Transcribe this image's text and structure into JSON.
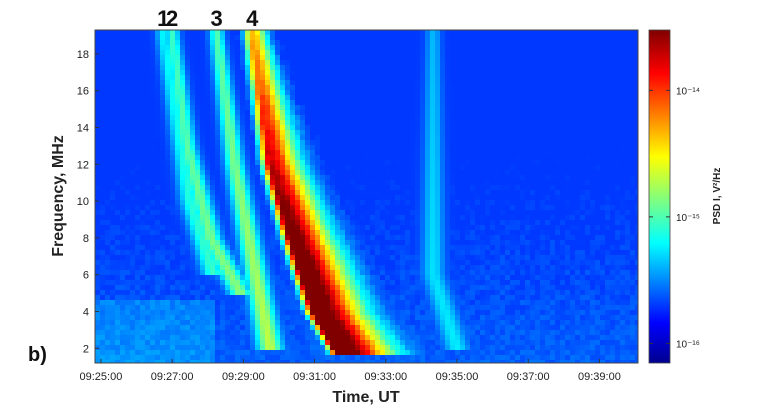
{
  "chart_data": {
    "type": "heatmap",
    "panel_label": "b)",
    "xlabel": "Time, UT",
    "ylabel": "Frequency, MHz",
    "x_ticks": [
      "09:25:00",
      "09:27:00",
      "09:29:00",
      "09:31:00",
      "09:33:00",
      "09:35:00",
      "09:37:00",
      "09:39:00"
    ],
    "x_range": [
      "09:24:50",
      "09:40:05"
    ],
    "y_ticks": [
      2,
      4,
      6,
      8,
      10,
      12,
      14,
      16,
      18
    ],
    "y_range": [
      1.2,
      19.3
    ],
    "burst_labels": [
      "1",
      "2",
      "3",
      "4"
    ],
    "bursts": [
      {
        "label": "1",
        "points": [
          [
            "09:26:45",
            19
          ],
          [
            "09:27:30",
            10
          ],
          [
            "09:28:10",
            6
          ]
        ],
        "intensity": 0.42
      },
      {
        "label": "2",
        "points": [
          [
            "09:27:00",
            19
          ],
          [
            "09:27:25",
            13
          ],
          [
            "09:28:05",
            8
          ],
          [
            "09:28:55",
            5
          ]
        ],
        "intensity": 0.55
      },
      {
        "label": "3",
        "points": [
          [
            "09:28:15",
            19
          ],
          [
            "09:28:45",
            12
          ],
          [
            "09:29:15",
            7
          ],
          [
            "09:29:45",
            2
          ]
        ],
        "intensity": 0.6
      },
      {
        "label": "4",
        "points": [
          [
            "09:29:15",
            19
          ],
          [
            "09:29:45",
            12
          ],
          [
            "09:30:20",
            8
          ],
          [
            "09:31:00",
            4
          ],
          [
            "09:31:45",
            1.5
          ]
        ],
        "intensity": 1.0
      },
      {
        "label": "",
        "points": [
          [
            "09:34:20",
            6
          ],
          [
            "09:35:00",
            2
          ]
        ],
        "intensity": 0.28
      }
    ],
    "colorbar": {
      "label": "PSD I, V²/Hz",
      "scale": "log",
      "range": [
        "7e-17",
        "3e-14"
      ],
      "ticks": [
        "10⁻¹⁴",
        "10⁻¹⁵",
        "10⁻¹⁶"
      ],
      "colormap": "jet"
    }
  }
}
